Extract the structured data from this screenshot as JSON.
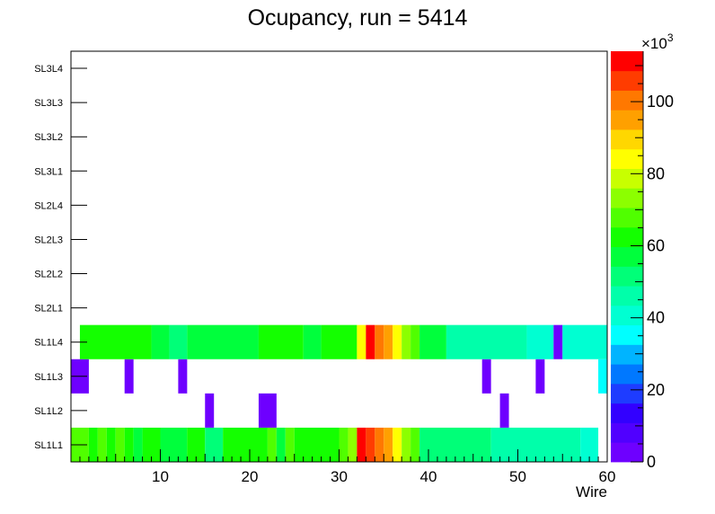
{
  "chart_data": {
    "type": "heatmap",
    "title": "Ocupancy, run = 5414",
    "xlabel": "Wire",
    "ylabel": "",
    "xlim": [
      0,
      60
    ],
    "x_ticks": [
      10,
      20,
      30,
      40,
      50,
      60
    ],
    "y_categories": [
      "SL1L1",
      "SL1L2",
      "SL1L3",
      "SL1L4",
      "SL2L1",
      "SL2L2",
      "SL2L3",
      "SL2L4",
      "SL3L1",
      "SL3L2",
      "SL3L3",
      "SL3L4"
    ],
    "z_range": [
      0,
      114000
    ],
    "z_ticks": [
      0,
      20,
      40,
      60,
      80,
      100
    ],
    "z_multiplier": "×10",
    "z_multiplier_exp": "3",
    "palette": [
      "#6e00ff",
      "#5000ff",
      "#3200ff",
      "#1e3cff",
      "#0078ff",
      "#00b4ff",
      "#00ffff",
      "#00ffd2",
      "#00ffaa",
      "#00ff78",
      "#00ff3c",
      "#14ff00",
      "#50ff00",
      "#8cff00",
      "#c8ff00",
      "#ffff00",
      "#ffd700",
      "#ffa000",
      "#ff7800",
      "#ff3c00",
      "#ff0000"
    ],
    "rows": [
      {
        "layer": "SL1L1",
        "segments": [
          {
            "x0": 0,
            "x1": 2,
            "value": 66000
          },
          {
            "x0": 2,
            "x1": 3,
            "value": 61000
          },
          {
            "x0": 3,
            "x1": 4,
            "value": 66000
          },
          {
            "x0": 4,
            "x1": 5,
            "value": 61000
          },
          {
            "x0": 5,
            "x1": 6,
            "value": 66000
          },
          {
            "x0": 6,
            "x1": 7,
            "value": 61000
          },
          {
            "x0": 7,
            "x1": 8,
            "value": 55000
          },
          {
            "x0": 8,
            "x1": 10,
            "value": 61000
          },
          {
            "x0": 10,
            "x1": 13,
            "value": 55000
          },
          {
            "x0": 13,
            "x1": 15,
            "value": 61000
          },
          {
            "x0": 15,
            "x1": 17,
            "value": 50000
          },
          {
            "x0": 17,
            "x1": 22,
            "value": 61000
          },
          {
            "x0": 22,
            "x1": 23,
            "value": 66000
          },
          {
            "x0": 23,
            "x1": 24,
            "value": 55000
          },
          {
            "x0": 24,
            "x1": 25,
            "value": 66000
          },
          {
            "x0": 25,
            "x1": 30,
            "value": 61000
          },
          {
            "x0": 30,
            "x1": 31,
            "value": 66000
          },
          {
            "x0": 31,
            "x1": 32,
            "value": 71000
          },
          {
            "x0": 32,
            "x1": 33,
            "value": 112000
          },
          {
            "x0": 33,
            "x1": 34,
            "value": 107000
          },
          {
            "x0": 34,
            "x1": 35,
            "value": 98000
          },
          {
            "x0": 35,
            "x1": 36,
            "value": 93000
          },
          {
            "x0": 36,
            "x1": 37,
            "value": 82000
          },
          {
            "x0": 37,
            "x1": 38,
            "value": 71000
          },
          {
            "x0": 38,
            "x1": 39,
            "value": 66000
          },
          {
            "x0": 39,
            "x1": 47,
            "value": 50000
          },
          {
            "x0": 47,
            "x1": 57,
            "value": 44000
          },
          {
            "x0": 57,
            "x1": 59,
            "value": 38000
          }
        ]
      },
      {
        "layer": "SL1L2",
        "segments": [
          {
            "x0": 15,
            "x1": 16,
            "value": 3000
          },
          {
            "x0": 21,
            "x1": 23,
            "value": 3000
          },
          {
            "x0": 48,
            "x1": 49,
            "value": 3000
          }
        ]
      },
      {
        "layer": "SL1L3",
        "segments": [
          {
            "x0": 0,
            "x1": 2,
            "value": 3000
          },
          {
            "x0": 6,
            "x1": 7,
            "value": 3000
          },
          {
            "x0": 12,
            "x1": 13,
            "value": 3000
          },
          {
            "x0": 46,
            "x1": 47,
            "value": 3000
          },
          {
            "x0": 52,
            "x1": 53,
            "value": 3000
          },
          {
            "x0": 59,
            "x1": 60,
            "value": 33000
          }
        ]
      },
      {
        "layer": "SL1L4",
        "segments": [
          {
            "x0": 1,
            "x1": 9,
            "value": 61000
          },
          {
            "x0": 9,
            "x1": 11,
            "value": 55000
          },
          {
            "x0": 11,
            "x1": 13,
            "value": 50000
          },
          {
            "x0": 13,
            "x1": 21,
            "value": 55000
          },
          {
            "x0": 21,
            "x1": 26,
            "value": 61000
          },
          {
            "x0": 26,
            "x1": 28,
            "value": 55000
          },
          {
            "x0": 28,
            "x1": 32,
            "value": 61000
          },
          {
            "x0": 32,
            "x1": 33,
            "value": 82000
          },
          {
            "x0": 33,
            "x1": 34,
            "value": 112000
          },
          {
            "x0": 34,
            "x1": 35,
            "value": 102000
          },
          {
            "x0": 35,
            "x1": 36,
            "value": 93000
          },
          {
            "x0": 36,
            "x1": 37,
            "value": 82000
          },
          {
            "x0": 37,
            "x1": 38,
            "value": 71000
          },
          {
            "x0": 38,
            "x1": 39,
            "value": 66000
          },
          {
            "x0": 39,
            "x1": 42,
            "value": 55000
          },
          {
            "x0": 42,
            "x1": 51,
            "value": 44000
          },
          {
            "x0": 51,
            "x1": 54,
            "value": 38000
          },
          {
            "x0": 54,
            "x1": 55,
            "value": 3000
          },
          {
            "x0": 55,
            "x1": 60,
            "value": 38000
          }
        ]
      },
      {
        "layer": "SL2L1",
        "segments": []
      },
      {
        "layer": "SL2L2",
        "segments": []
      },
      {
        "layer": "SL2L3",
        "segments": []
      },
      {
        "layer": "SL2L4",
        "segments": []
      },
      {
        "layer": "SL3L1",
        "segments": []
      },
      {
        "layer": "SL3L2",
        "segments": []
      },
      {
        "layer": "SL3L3",
        "segments": []
      },
      {
        "layer": "SL3L4",
        "segments": []
      }
    ]
  }
}
